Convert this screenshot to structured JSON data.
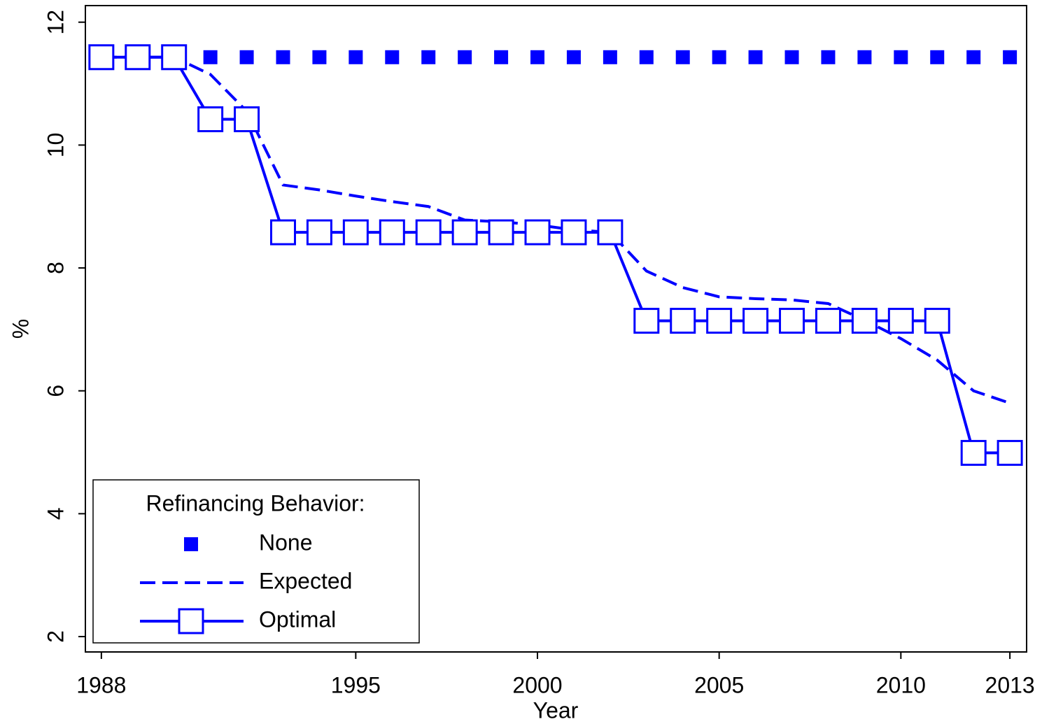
{
  "chart_data": {
    "type": "line",
    "x_label": "Year",
    "y_label": "%",
    "x": [
      1988,
      1989,
      1990,
      1991,
      1992,
      1993,
      1994,
      1995,
      1996,
      1997,
      1998,
      1999,
      2000,
      2001,
      2002,
      2003,
      2004,
      2005,
      2006,
      2007,
      2008,
      2009,
      2010,
      2011,
      2012,
      2013
    ],
    "series": [
      {
        "name": "None",
        "color": "#0000ff",
        "marker": "filled-square",
        "line": false,
        "values": [
          11.43,
          11.43,
          11.43,
          11.43,
          11.43,
          11.43,
          11.43,
          11.43,
          11.43,
          11.43,
          11.43,
          11.43,
          11.43,
          11.43,
          11.43,
          11.43,
          11.43,
          11.43,
          11.43,
          11.43,
          11.43,
          11.43,
          11.43,
          11.43,
          11.43,
          11.43
        ]
      },
      {
        "name": "Expected",
        "color": "#0000ff",
        "marker": "none",
        "line": true,
        "dash": true,
        "values": [
          11.43,
          11.43,
          11.43,
          11.15,
          10.55,
          9.35,
          9.27,
          9.17,
          9.08,
          9.0,
          8.78,
          8.75,
          8.7,
          8.62,
          8.58,
          7.95,
          7.68,
          7.53,
          7.5,
          7.48,
          7.42,
          7.15,
          6.85,
          6.5,
          6.0,
          5.8
        ]
      },
      {
        "name": "Optimal",
        "color": "#0000ff",
        "marker": "open-square",
        "line": true,
        "dash": false,
        "values": [
          11.43,
          11.43,
          11.43,
          10.42,
          10.42,
          8.58,
          8.58,
          8.58,
          8.58,
          8.58,
          8.58,
          8.58,
          8.58,
          8.58,
          8.58,
          7.14,
          7.14,
          7.14,
          7.14,
          7.14,
          7.14,
          7.14,
          7.14,
          7.14,
          4.99,
          4.99
        ]
      }
    ],
    "xlim": [
      1987.56,
      2013.46
    ],
    "xticks": [
      1988,
      1995,
      2000,
      2005,
      2010,
      2013
    ],
    "ylim": [
      1.75,
      12.27
    ],
    "yticks": [
      2,
      4,
      6,
      8,
      10,
      12
    ],
    "grid": false,
    "legend_title": "Refinancing Behavior:",
    "legend_position": "lower left"
  }
}
